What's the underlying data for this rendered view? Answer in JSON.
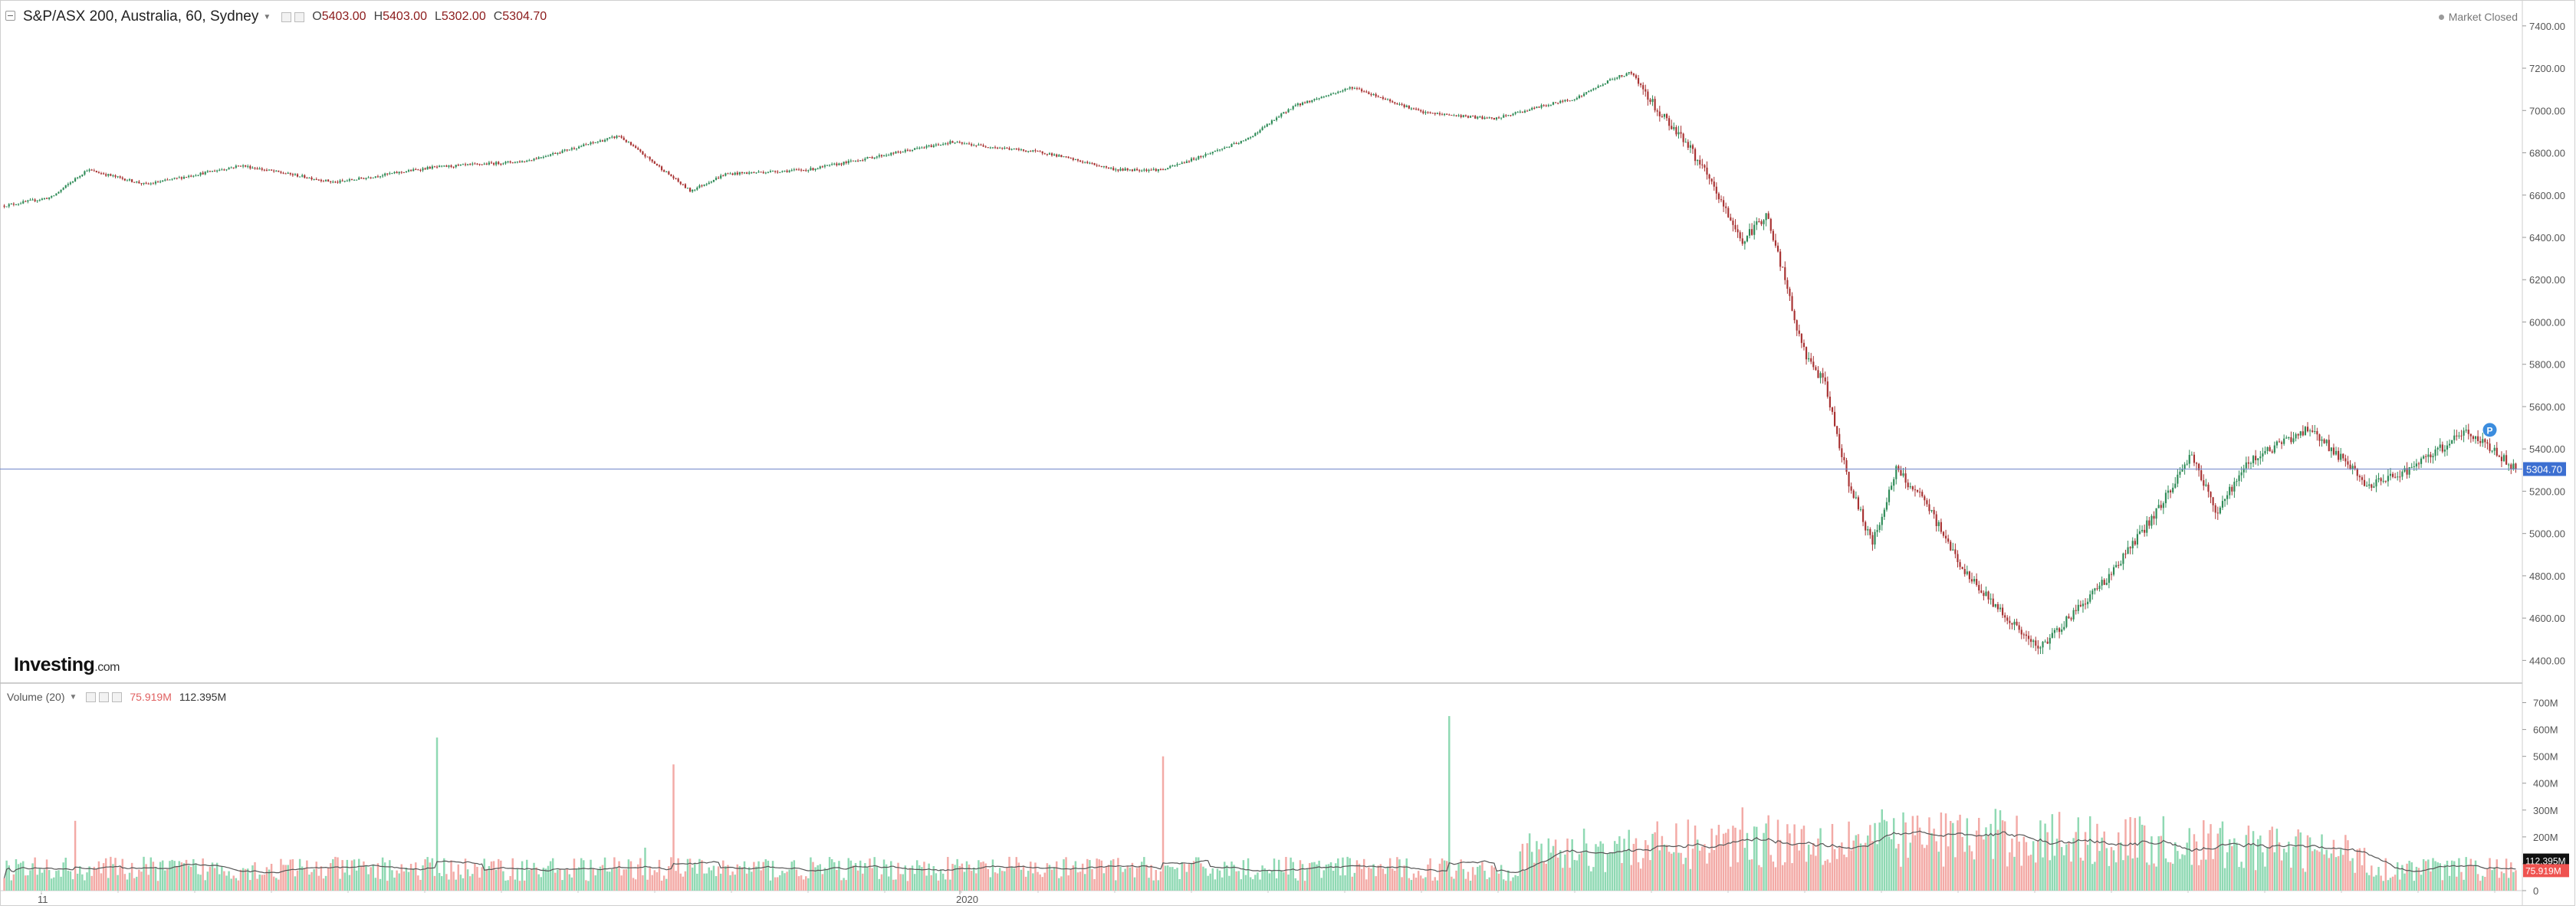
{
  "header": {
    "symbol": "S&P/ASX 200, Australia, 60, Sydney",
    "open": "5403.00",
    "high": "5403.00",
    "low": "5302.00",
    "close": "5304.70",
    "status": "Market Closed"
  },
  "volume_legend": {
    "label": "Volume (20)",
    "down_value": "75.919M",
    "ma_value": "112.395M"
  },
  "logo": {
    "name": "Investing",
    "domain": ".com"
  },
  "colors": {
    "up": "#2e8b57",
    "down": "#a83232",
    "vol_up": "#8fd9b3",
    "vol_down": "#f3aaa6",
    "price_line": "#6f86c9",
    "price_badge": "#3c6fd1",
    "vol_ma_badge": "#111111",
    "vol_last_badge": "#ef5350"
  },
  "chart_data": [
    {
      "type": "candlestick",
      "title": "S&P/ASX 200, Australia, 60, Sydney",
      "ylim": [
        4300,
        7450
      ],
      "yticks": [
        "4400.00",
        "4600.00",
        "4800.00",
        "5000.00",
        "5200.00",
        "5400.00",
        "5600.00",
        "5800.00",
        "6000.00",
        "6200.00",
        "6400.00",
        "6600.00",
        "6800.00",
        "7000.00",
        "7200.00",
        "7400.00"
      ],
      "xticks": [
        "11",
        "2020"
      ],
      "last_price": "5304.70",
      "grid": false,
      "path_index": [
        0,
        20,
        35,
        60,
        100,
        140,
        180,
        220,
        260,
        290,
        305,
        340,
        400,
        440,
        470,
        490,
        525,
        545,
        570,
        600,
        630,
        650,
        665,
        680,
        688,
        700,
        710,
        720,
        735,
        745,
        752,
        760,
        770,
        780,
        790,
        800,
        812,
        830,
        860,
        890,
        910,
        925,
        935,
        950,
        975,
        1000,
        1020,
        1040,
        1050,
        1062
      ],
      "path_close": [
        6550,
        6590,
        6720,
        6650,
        6740,
        6660,
        6730,
        6760,
        6880,
        6620,
        6700,
        6720,
        6850,
        6800,
        6720,
        6720,
        6860,
        7020,
        7110,
        6990,
        6960,
        7020,
        7060,
        7150,
        7180,
        6990,
        6870,
        6690,
        6380,
        6510,
        6240,
        5880,
        5700,
        5240,
        4950,
        5300,
        5150,
        4800,
        4450,
        4800,
        5100,
        5380,
        5100,
        5350,
        5500,
        5220,
        5320,
        5480,
        5420,
        5304.7
      ]
    },
    {
      "type": "bar",
      "title": "Volume (20)",
      "ylim": [
        0,
        750
      ],
      "yticks": [
        "0",
        "100M",
        "200M",
        "300M",
        "400M",
        "500M",
        "600M",
        "700M"
      ],
      "ma_label": "112.395M",
      "last_label": "75.919M",
      "base_m": 90,
      "spikes": [
        [
          30,
          260,
          "down"
        ],
        [
          183,
          570,
          "up"
        ],
        [
          271,
          160,
          "up"
        ],
        [
          283,
          470,
          "down"
        ],
        [
          490,
          500,
          "down"
        ],
        [
          611,
          650,
          "up"
        ],
        [
          700,
          150,
          "up"
        ],
        [
          735,
          310,
          "down"
        ],
        [
          745,
          250,
          "up"
        ],
        [
          900,
          120,
          "up"
        ],
        [
          1050,
          80,
          "down"
        ]
      ]
    }
  ]
}
